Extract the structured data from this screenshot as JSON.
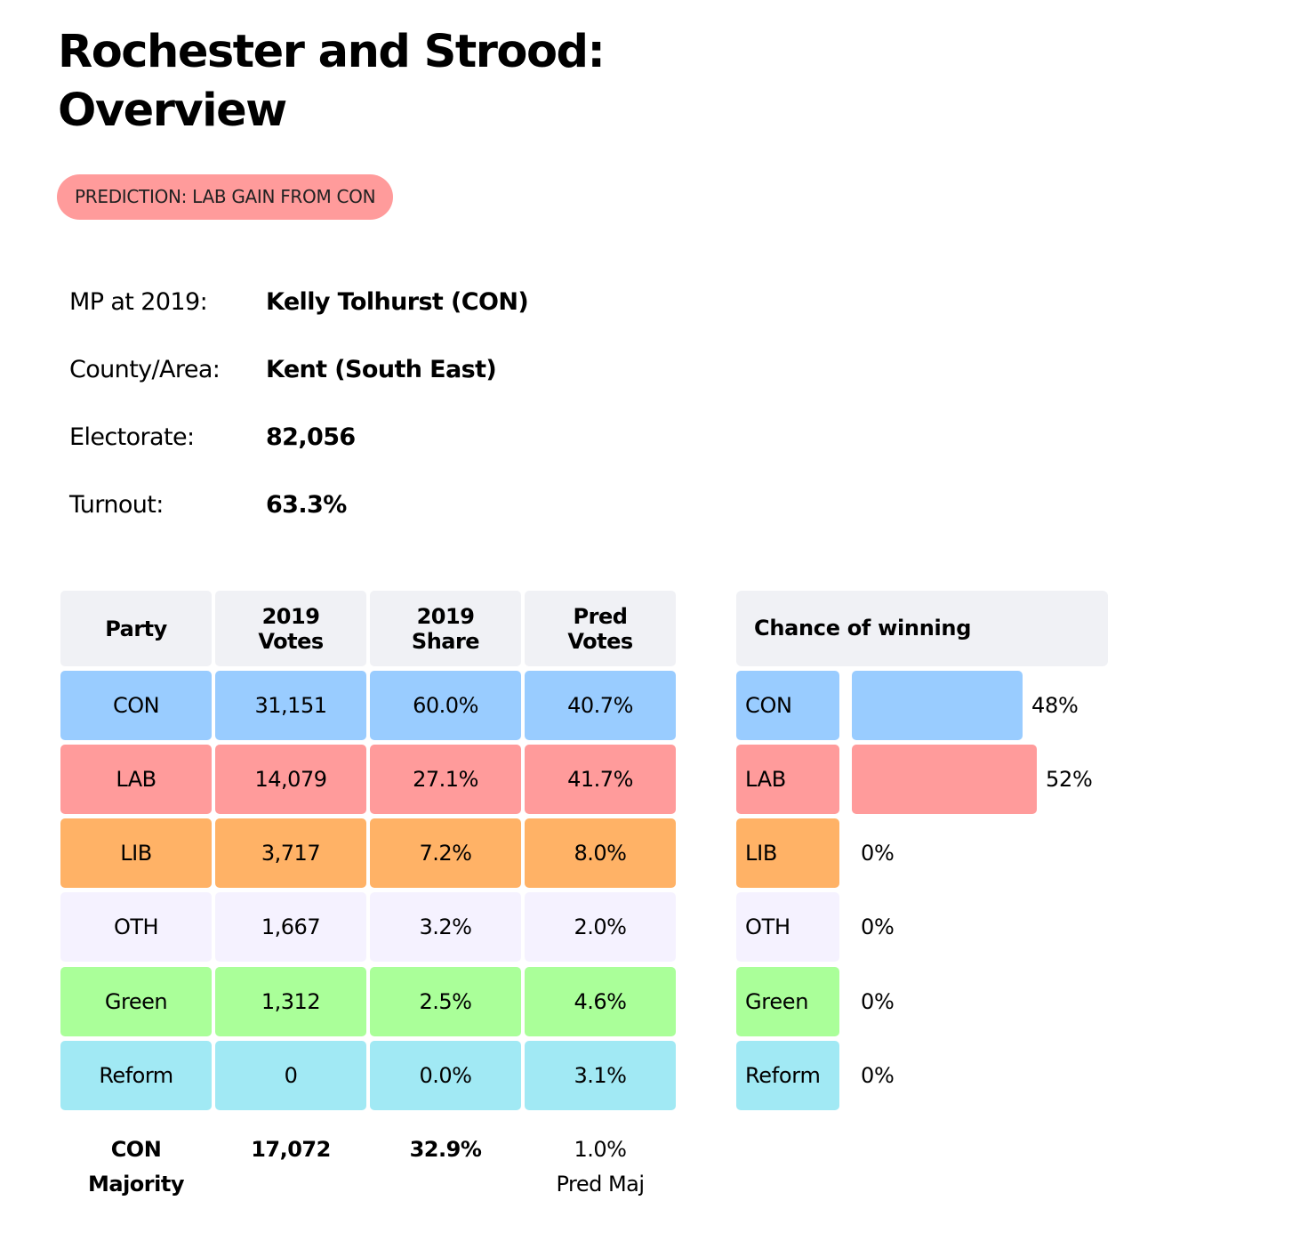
{
  "title": "Rochester and Strood: Overview",
  "prediction_badge": "PREDICTION: LAB GAIN FROM CON",
  "info": [
    {
      "label": "MP at 2019:",
      "value": "Kelly Tolhurst  (CON)"
    },
    {
      "label": "County/Area:",
      "value": "Kent (South East)"
    },
    {
      "label": "Electorate:",
      "value": "82,056"
    },
    {
      "label": "Turnout:",
      "value": "63.3%"
    }
  ],
  "table": {
    "headers": [
      "Party",
      "2019\nVotes",
      "2019\nShare",
      "Pred\nVotes"
    ],
    "rows": [
      {
        "party": "CON",
        "votes": "31,151",
        "share": "60.0%",
        "pred": "40.7%",
        "color": "#99ccff"
      },
      {
        "party": "LAB",
        "votes": "14,079",
        "share": "27.1%",
        "pred": "41.7%",
        "color": "#ff9b9b"
      },
      {
        "party": "LIB",
        "votes": "3,717",
        "share": "7.2%",
        "pred": "8.0%",
        "color": "#ffb266"
      },
      {
        "party": "OTH",
        "votes": "1,667",
        "share": "3.2%",
        "pred": "2.0%",
        "color": "#f5f2ff"
      },
      {
        "party": "Green",
        "votes": "1,312",
        "share": "2.5%",
        "pred": "4.6%",
        "color": "#aaff99"
      },
      {
        "party": "Reform",
        "votes": "0",
        "share": "0.0%",
        "pred": "3.1%",
        "color": "#a1e9f4"
      }
    ],
    "footer": {
      "majority_label": "CON\nMajority",
      "majority_votes": "17,072",
      "majority_share": "32.9%",
      "pred_maj": "1.0%",
      "pred_maj_label": "Pred Maj"
    }
  },
  "chance": {
    "header": "Chance of winning",
    "rows": [
      {
        "party": "CON",
        "pct": 48,
        "label": "48%",
        "color": "#99ccff"
      },
      {
        "party": "LAB",
        "pct": 52,
        "label": "52%",
        "color": "#ff9b9b"
      },
      {
        "party": "LIB",
        "pct": 0,
        "label": "0%",
        "color": "#ffb266"
      },
      {
        "party": "OTH",
        "pct": 0,
        "label": "0%",
        "color": "#f5f2ff"
      },
      {
        "party": "Green",
        "pct": 0,
        "label": "0%",
        "color": "#aaff99"
      },
      {
        "party": "Reform",
        "pct": 0,
        "label": "0%",
        "color": "#a1e9f4"
      }
    ]
  }
}
